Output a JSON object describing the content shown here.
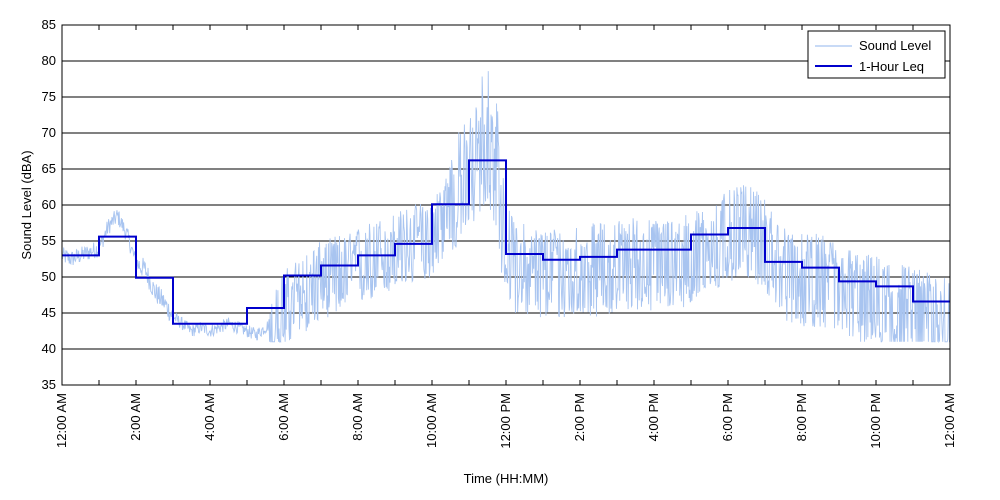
{
  "chart_data": {
    "type": "line",
    "title": "",
    "xlabel": "Time (HH:MM)",
    "ylabel": "Sound Level (dBA)",
    "ylim": [
      35,
      85
    ],
    "yticks": [
      35,
      40,
      45,
      50,
      55,
      60,
      65,
      70,
      75,
      80,
      85
    ],
    "xlim_hours": [
      0,
      24
    ],
    "x_unit": "hours since 12:00 AM",
    "xtick_labels": [
      "12:00 AM",
      "2:00 AM",
      "4:00 AM",
      "6:00 AM",
      "8:00 AM",
      "10:00 AM",
      "12:00 PM",
      "2:00 PM",
      "4:00 PM",
      "6:00 PM",
      "8:00 PM",
      "10:00 PM",
      "12:00 AM"
    ],
    "xtick_hours": [
      0,
      2,
      4,
      6,
      8,
      10,
      12,
      14,
      16,
      18,
      20,
      22,
      24
    ],
    "minor_xtick_hours": [
      1,
      3,
      5,
      7,
      9,
      11,
      13,
      15,
      17,
      19,
      21,
      23
    ],
    "grid": "horizontal",
    "legend_position": "top-right",
    "colors": {
      "sound_level": "#a8c4f0",
      "leq": "#0000cc"
    },
    "series": [
      {
        "name": "Sound Level",
        "style": "thin-noisy-line",
        "x": [
          0,
          0.25,
          0.5,
          0.75,
          1,
          1.25,
          1.5,
          1.75,
          2,
          2.25,
          2.5,
          2.75,
          3,
          3.25,
          3.5,
          3.75,
          4,
          4.25,
          4.5,
          4.75,
          5,
          5.25,
          5.5,
          5.75,
          6,
          6.25,
          6.5,
          6.75,
          7,
          7.25,
          7.5,
          7.75,
          8,
          8.25,
          8.5,
          8.75,
          9,
          9.25,
          9.5,
          9.75,
          10,
          10.25,
          10.5,
          10.75,
          11,
          11.25,
          11.5,
          11.75,
          12,
          12.25,
          12.5,
          12.75,
          13,
          13.5,
          14,
          14.5,
          15,
          15.5,
          16,
          16.5,
          17,
          17.5,
          18,
          18.5,
          19,
          19.5,
          20,
          20.5,
          21,
          21.5,
          22,
          22.5,
          23,
          23.5,
          24
        ],
        "values": [
          53,
          52.5,
          53,
          53.5,
          54,
          57,
          58.5,
          56,
          52,
          51,
          48,
          46.5,
          44.5,
          43.5,
          42.5,
          43,
          42.5,
          43,
          43.5,
          43,
          42.5,
          42,
          43,
          44,
          47,
          48,
          49,
          50,
          51,
          51.5,
          52,
          52,
          53,
          53.5,
          54,
          54.5,
          55,
          55.5,
          56,
          56.5,
          57,
          59,
          62,
          64,
          66,
          68,
          70,
          65,
          55,
          53,
          52.5,
          52,
          52,
          52,
          52.5,
          52.5,
          53,
          53.5,
          53,
          53.5,
          54,
          55,
          57,
          58,
          56,
          52,
          51,
          51,
          50,
          48.5,
          48,
          47.5,
          46.5,
          45.5,
          46.5
        ]
      },
      {
        "name": "1-Hour Leq",
        "style": "step",
        "hours": [
          0,
          1,
          2,
          3,
          4,
          5,
          6,
          7,
          8,
          9,
          10,
          11,
          12,
          13,
          14,
          15,
          16,
          17,
          18,
          19,
          20,
          21,
          22,
          23
        ],
        "values": [
          53.0,
          55.6,
          49.9,
          43.5,
          43.5,
          45.7,
          50.2,
          51.6,
          53.0,
          54.6,
          60.1,
          66.2,
          53.2,
          52.4,
          52.8,
          53.8,
          53.8,
          55.9,
          56.8,
          52.1,
          51.3,
          49.4,
          48.7,
          46.6
        ]
      }
    ]
  }
}
